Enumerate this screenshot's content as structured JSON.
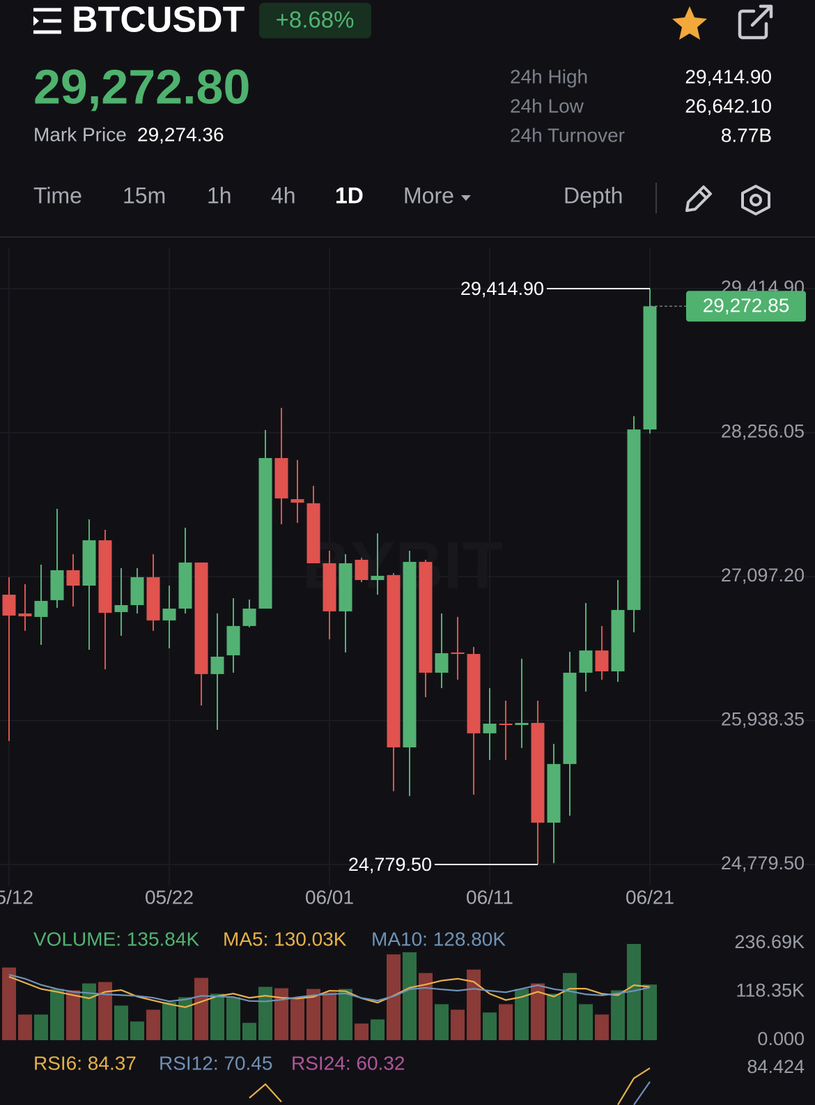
{
  "header": {
    "symbol": "BTCUSDT",
    "change": "+8.68%"
  },
  "price": {
    "last": "29,272.80",
    "mark_label": "Mark Price",
    "mark_value": "29,274.36"
  },
  "stats": [
    {
      "label": "24h High",
      "value": "29,414.90"
    },
    {
      "label": "24h Low",
      "value": "26,642.10"
    },
    {
      "label": "24h Turnover",
      "value": "8.77B"
    }
  ],
  "tabs": [
    "Time",
    "15m",
    "1h",
    "4h",
    "1D",
    "More",
    "Depth"
  ],
  "active_tab": 4,
  "watermark": "BYBIT",
  "chart_data": [
    {
      "type": "candlestick",
      "categories": [
        "05/12",
        null,
        null,
        null,
        null,
        null,
        null,
        null,
        null,
        null,
        "05/22",
        null,
        null,
        null,
        null,
        null,
        null,
        null,
        null,
        null,
        "06/01",
        null,
        null,
        null,
        null,
        null,
        null,
        null,
        null,
        null,
        "06/11",
        null,
        null,
        null,
        null,
        null,
        null,
        null,
        null,
        null,
        "06/21"
      ],
      "open": [
        26951,
        26800,
        26772,
        26907,
        27148,
        27024,
        27389,
        26811,
        26867,
        27092,
        26744,
        26839,
        27210,
        26312,
        26463,
        26699,
        26839,
        28051,
        27720,
        27687,
        27204,
        26817,
        27232,
        27069,
        27109,
        25722,
        27215,
        26323,
        26486,
        26474,
        25835,
        25913,
        25902,
        25919,
        25116,
        25588,
        26323,
        26502,
        26334,
        26828,
        28281
      ],
      "high": [
        27092,
        27036,
        27193,
        27642,
        27277,
        27557,
        27473,
        27165,
        27165,
        27277,
        27024,
        27490,
        27210,
        26800,
        26923,
        26912,
        28276,
        28455,
        28035,
        27827,
        27305,
        27277,
        27249,
        27445,
        27125,
        27305,
        27232,
        26800,
        26772,
        26530,
        26199,
        26098,
        26435,
        26098,
        25750,
        26491,
        26884,
        26699,
        27069,
        28388,
        29414.9
      ],
      "low": [
        25773,
        26660,
        26547,
        26845,
        26856,
        26508,
        26351,
        26620,
        26800,
        26660,
        26519,
        26800,
        26059,
        25863,
        26323,
        26688,
        26839,
        27518,
        27529,
        27204,
        26592,
        26486,
        27052,
        26951,
        25369,
        25330,
        26126,
        26199,
        26267,
        25341,
        25621,
        25621,
        25717,
        24779.5,
        24790,
        25172,
        26171,
        26267,
        26250,
        26648,
        28248
      ],
      "close": [
        26783,
        26777,
        26901,
        27148,
        27024,
        27389,
        26805,
        26867,
        27092,
        26744,
        26839,
        27210,
        26312,
        26452,
        26699,
        26839,
        28051,
        27726,
        27692,
        27204,
        26817,
        27204,
        27069,
        27103,
        25722,
        27215,
        26323,
        26480,
        26474,
        25835,
        25913,
        25902,
        25919,
        25116,
        25588,
        26323,
        26502,
        26334,
        26828,
        28281,
        29272.85
      ],
      "up_color": "#53b273",
      "down_color": "#e0534f",
      "ylim": [
        24611,
        29830
      ],
      "yticks": [
        {
          "value": 24779.5,
          "label": "24,779.50"
        },
        {
          "value": 25938.35,
          "label": "25,938.35"
        },
        {
          "value": 27097.2,
          "label": "27,097.20"
        },
        {
          "value": 28256.05,
          "label": "28,256.05"
        },
        {
          "value": 29414.9,
          "label": "29,414.90"
        }
      ],
      "grid": true,
      "xgrid": true,
      "high_marker": {
        "value": 29414.9,
        "label": "29,414.90"
      },
      "low_marker": {
        "value": 24779.5,
        "label": "24,779.50"
      },
      "last_price": {
        "value": 29272.85,
        "label": "29,272.85"
      }
    },
    {
      "type": "bar",
      "series": [
        {
          "name": "VOLUME: 135.84K",
          "type": "bar",
          "color": "#53b273",
          "up_color": "#2d6e44",
          "down_color": "#8a3a37",
          "values": [
            177.5,
            62.6,
            62.6,
            125.1,
            121.7,
            138.6,
            142,
            84.5,
            45.6,
            74.4,
            93,
            104.8,
            152.2,
            113.3,
            104.8,
            42.3,
            130.2,
            126.8,
            104.8,
            125.1,
            116.7,
            125.1,
            40.6,
            50.7,
            209.6,
            214.7,
            164,
            87.9,
            74.4,
            172.4,
            67.6,
            87.9,
            125.1,
            138.6,
            113.3,
            164,
            87.9,
            62.6,
            121.7,
            235,
            135.84
          ]
        },
        {
          "name": "MA5: 130.03K",
          "type": "line",
          "color": "#e8b04b",
          "values": [
            155,
            140,
            125,
            118,
            109.9,
            102.1,
            118,
            122.4,
            106.5,
            97,
            87.9,
            80.5,
            94,
            107.5,
            113.6,
            103.5,
            108.6,
            103.5,
            101.8,
            105.8,
            120.7,
            119.7,
            102.5,
            91.6,
            108.5,
            128.1,
            135.9,
            145.4,
            150.1,
            142.7,
            113.3,
            98,
            105.5,
            118.3,
            106.5,
            125.8,
            125.8,
            113.3,
            109.9,
            134.2,
            130.03
          ]
        },
        {
          "name": "MA10: 128.80K",
          "type": "line",
          "color": "#6f93b8",
          "values": [
            160,
            150,
            135,
            125,
            118,
            115,
            112,
            110,
            108,
            103.5,
            95,
            99.3,
            108.2,
            107,
            105.3,
            95.7,
            94.6,
            98.8,
            104.7,
            109.7,
            112.1,
            114.2,
            103,
            96.7,
            107.2,
            124.4,
            127.8,
            124,
            120.9,
            125.6,
            120.7,
            117,
            125.5,
            134.2,
            124.6,
            119.6,
            111.9,
            109.4,
            114.1,
            120.4,
            128.8
          ]
        }
      ],
      "ylim": [
        0,
        236.69
      ],
      "yticks": [
        {
          "value": 0,
          "label": "0.000"
        },
        {
          "value": 118.35,
          "label": "118.35K"
        },
        {
          "value": 236.69,
          "label": "236.69K"
        }
      ],
      "grid": false
    },
    {
      "type": "line",
      "series": [
        {
          "name": "RSI6: 84.37",
          "color": "#e5b04a",
          "values": [
            null,
            null,
            null,
            null,
            null,
            null,
            null,
            null,
            null,
            null,
            null,
            null,
            null,
            null,
            null,
            54,
            68,
            50,
            null,
            null,
            null,
            null,
            null,
            null,
            null,
            null,
            null,
            null,
            null,
            null,
            null,
            null,
            null,
            null,
            null,
            null,
            null,
            null,
            47,
            74,
            84.37
          ]
        },
        {
          "name": "RSI12: 70.45",
          "color": "#6f8fb8",
          "values": [
            null,
            null,
            null,
            null,
            null,
            null,
            null,
            null,
            null,
            null,
            null,
            null,
            null,
            null,
            null,
            null,
            null,
            null,
            null,
            null,
            null,
            null,
            null,
            null,
            null,
            null,
            null,
            null,
            null,
            null,
            null,
            null,
            null,
            null,
            null,
            null,
            null,
            null,
            null,
            47,
            70.45
          ]
        },
        {
          "name": "RSI24: 60.32",
          "color": "#b0559c",
          "values": [
            null,
            null,
            null,
            null,
            null,
            null,
            null,
            null,
            null,
            null,
            null,
            null,
            null,
            null,
            null,
            null,
            null,
            null,
            null,
            null,
            null,
            null,
            null,
            null,
            null,
            null,
            null,
            null,
            null,
            null,
            null,
            null,
            null,
            null,
            null,
            null,
            null,
            null,
            null,
            null,
            null
          ]
        }
      ],
      "ylim": [
        0,
        100
      ],
      "yticks": [
        {
          "value": 84.424,
          "label": "84.424"
        }
      ],
      "grid": false
    }
  ]
}
